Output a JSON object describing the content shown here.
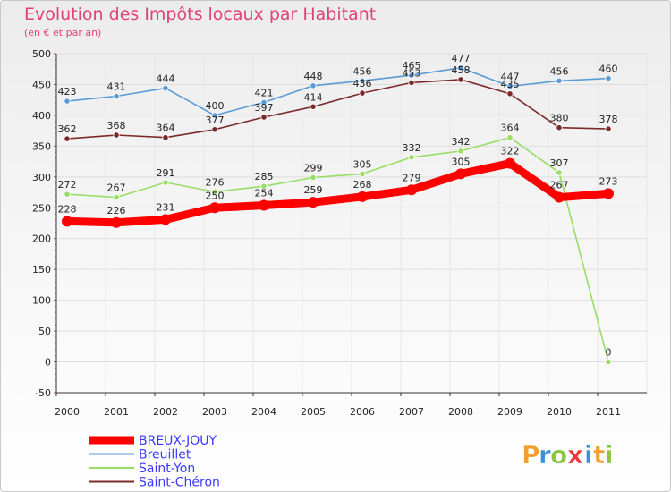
{
  "chart_data": {
    "type": "line",
    "title": "Evolution des Impôts locaux par Habitant",
    "subtitle": "(en € et par an)",
    "xlabel": "",
    "ylabel": "",
    "ylim": [
      -50,
      500
    ],
    "yticks": [
      -50,
      0,
      50,
      100,
      150,
      200,
      250,
      300,
      350,
      400,
      450,
      500
    ],
    "grid": true,
    "legend_position": "bottom-left",
    "categories": [
      "2000",
      "2001",
      "2002",
      "2003",
      "2004",
      "2005",
      "2006",
      "2007",
      "2008",
      "2009",
      "2010",
      "2011"
    ],
    "series": [
      {
        "name": "Breuillet",
        "color": "#5b9bd5",
        "style": "thin",
        "values": [
          423,
          431,
          444,
          400,
          421,
          448,
          456,
          465,
          477,
          447,
          456,
          460
        ]
      },
      {
        "name": "Saint-Chéron",
        "color": "#7b2a2a",
        "style": "thin",
        "values": [
          362,
          368,
          364,
          377,
          397,
          414,
          436,
          453,
          458,
          435,
          380,
          378
        ]
      },
      {
        "name": "Saint-Yon",
        "color": "#99dd66",
        "style": "thin",
        "values": [
          272,
          267,
          291,
          276,
          285,
          299,
          305,
          332,
          342,
          364,
          307,
          0
        ]
      },
      {
        "name": "BREUX-JOUY",
        "color": "#ff0000",
        "style": "thick",
        "values": [
          228,
          226,
          231,
          250,
          254,
          259,
          268,
          279,
          305,
          322,
          267,
          273
        ]
      }
    ],
    "legend_order": [
      "BREUX-JOUY",
      "Breuillet",
      "Saint-Yon",
      "Saint-Chéron"
    ]
  },
  "logo": {
    "text": "Proxiti",
    "letters": [
      "P",
      "r",
      "o",
      "x",
      "i",
      "t",
      "i"
    ],
    "colors": [
      "#f0a030",
      "#3a8fd8",
      "#8cc63f",
      "#e83a3a",
      "#3a8fd8",
      "#f0a030",
      "#8cc63f"
    ]
  }
}
